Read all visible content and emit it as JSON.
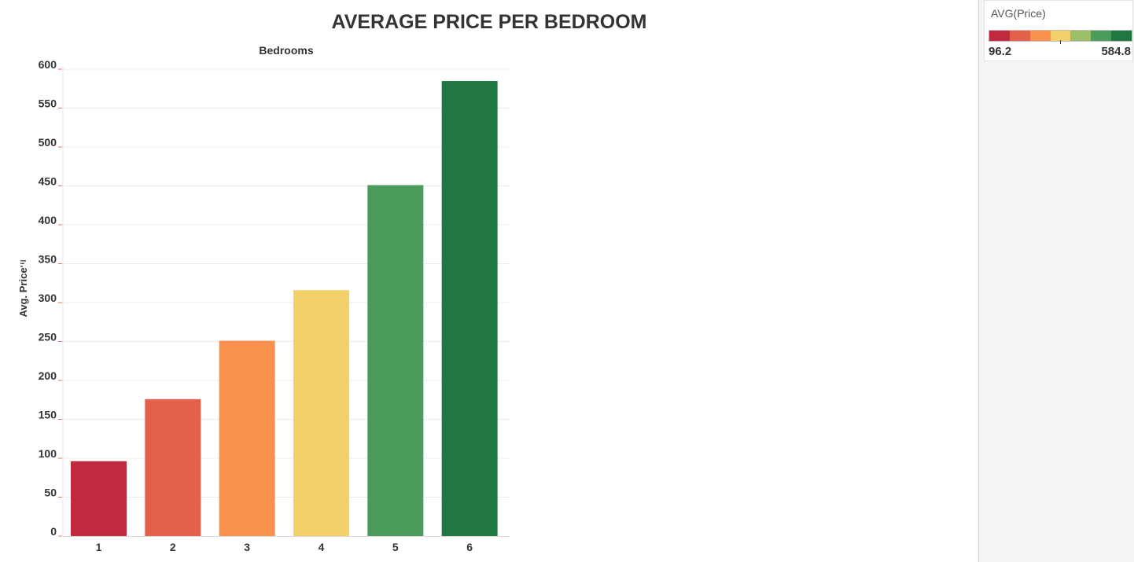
{
  "chart_data": {
    "type": "bar",
    "title": "AVERAGE PRICE PER BEDROOM",
    "column_header": "Bedrooms",
    "ylabel": "Avg. Price",
    "categories": [
      "1",
      "2",
      "3",
      "4",
      "5",
      "6"
    ],
    "values": [
      96.2,
      176,
      251,
      316,
      451,
      584.8
    ],
    "colors": [
      "#c0293e",
      "#e3604a",
      "#f8914d",
      "#f3d168",
      "#4b9b5d",
      "#217741"
    ],
    "ylim": [
      0,
      600
    ],
    "yticks": [
      0,
      50,
      100,
      150,
      200,
      250,
      300,
      350,
      400,
      450,
      500,
      550,
      600
    ],
    "grid": true,
    "legend": "top-right"
  },
  "legend": {
    "title": "AVG(Price)",
    "min_label": "96.2",
    "max_label": "584.8",
    "ramp_colors": [
      "#c0293e",
      "#e3604a",
      "#f8914d",
      "#f3d168",
      "#9bbf68",
      "#4b9b5d",
      "#217741"
    ]
  }
}
